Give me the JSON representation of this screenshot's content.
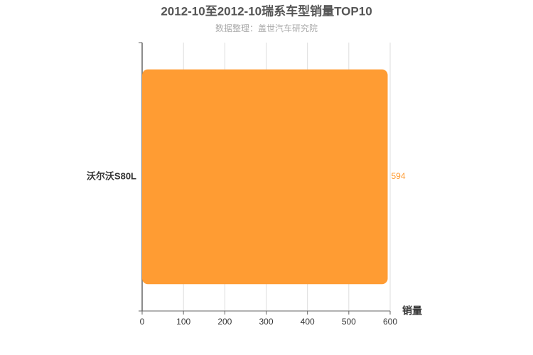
{
  "chart_data": {
    "type": "bar",
    "orientation": "horizontal",
    "title": "2012-10至2012-10瑞系车型销量TOP10",
    "subtitle": "数据整理：盖世汽车研究院",
    "x_label": "销量",
    "categories": [
      "沃尔沃S80L"
    ],
    "values": [
      594
    ],
    "color": "#ff9c33",
    "xlim": [
      0,
      600
    ],
    "xticks": [
      0,
      100,
      200,
      300,
      400,
      500,
      600
    ],
    "grid": true
  }
}
